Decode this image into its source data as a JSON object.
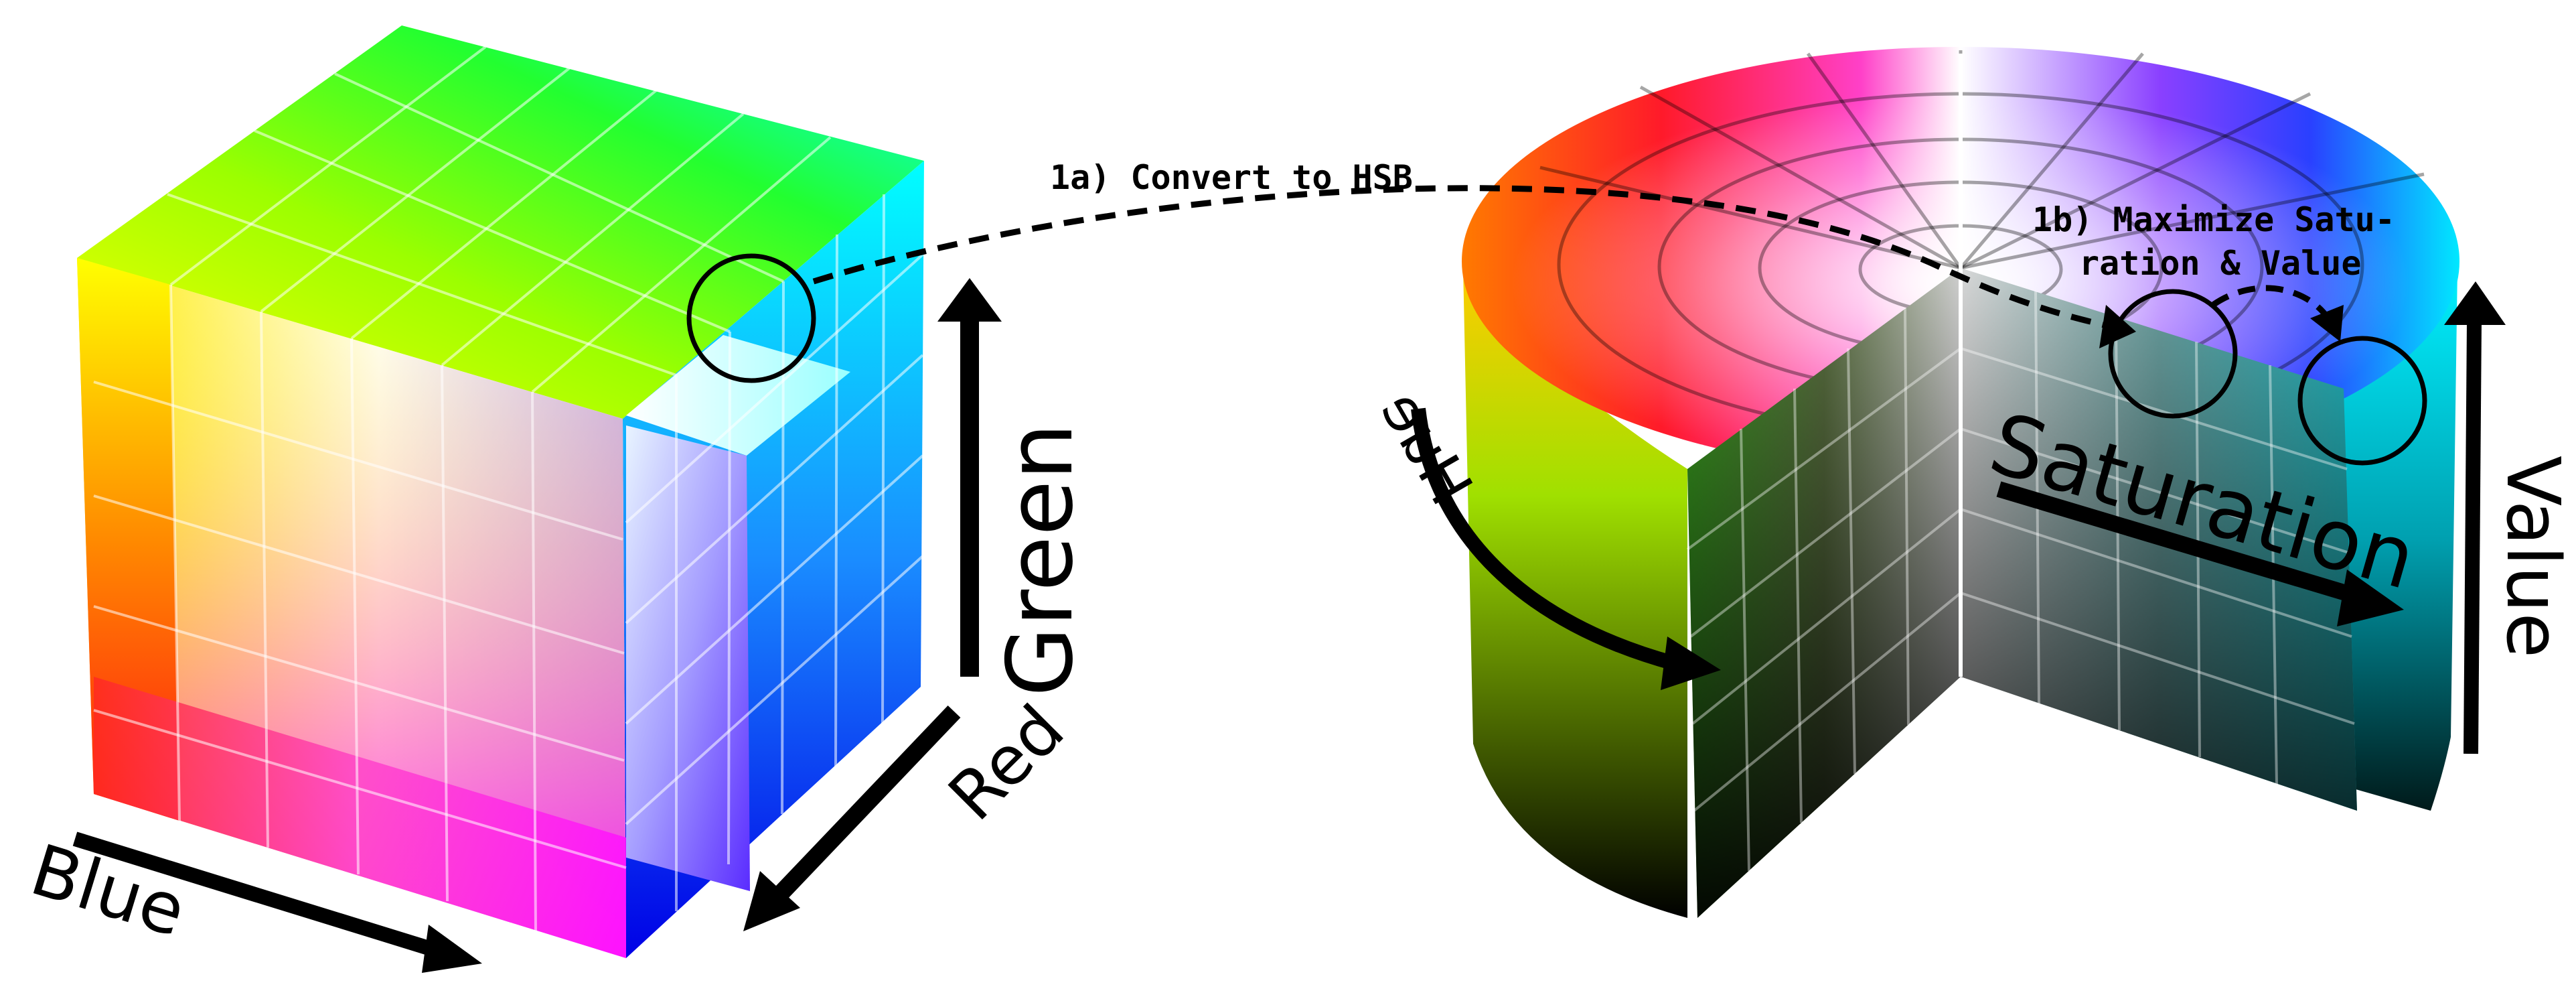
{
  "rgb_cube": {
    "axis_labels": {
      "green": "Green",
      "red": "Red",
      "blue": "Blue"
    },
    "corner_colors": {
      "red": "#ff0000",
      "green": "#00ff00",
      "blue": "#0000ff",
      "yellow": "#ffff00",
      "cyan": "#00ffff",
      "magenta": "#ff00ff",
      "white": "#ffffff"
    }
  },
  "hsb_cylinder": {
    "axis_labels": {
      "hue": "Hue",
      "saturation": "Saturation",
      "value": "Value"
    }
  },
  "annotations": {
    "convert": "1a) Convert to HSB",
    "maximize_line1": "1b) Maximize Satu-",
    "maximize_line2": "ration & Value"
  },
  "icons": [
    "marker-circle",
    "arrow-right-icon",
    "arrow-up-icon",
    "arrow-down-left-icon",
    "curved-arrow-icon"
  ]
}
